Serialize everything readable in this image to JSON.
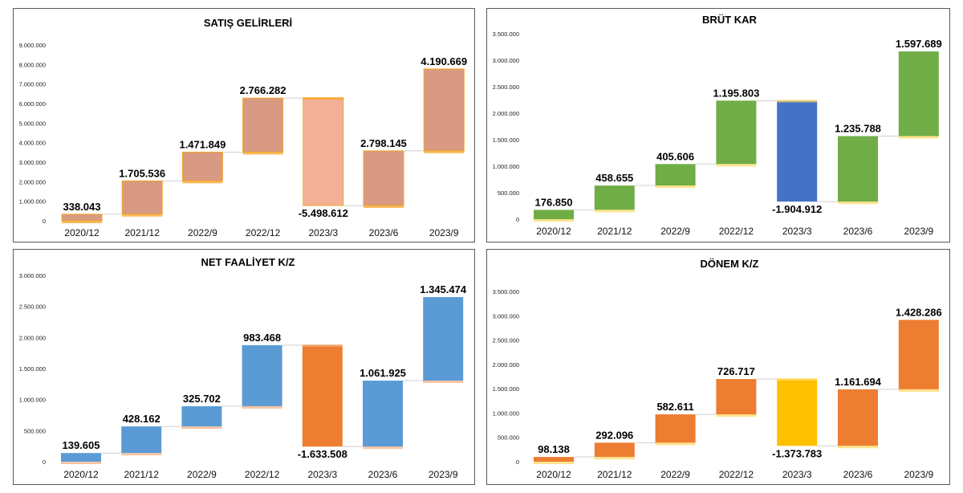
{
  "chart_data": [
    {
      "type": "waterfall",
      "title": "SATIŞ GELİRLERİ",
      "categories": [
        "2020/12",
        "2021/12",
        "2022/9",
        "2022/12",
        "2023/3",
        "2023/6",
        "2023/9"
      ],
      "deltas": [
        338043,
        1705536,
        1471849,
        2766282,
        -5498612,
        2798145,
        4190669
      ],
      "labels": [
        "338.043",
        "1.705.536",
        "1.471.849",
        "2.766.282",
        "-5.498.612",
        "2.798.145",
        "4.190.669"
      ],
      "ylim": [
        0,
        9000000
      ],
      "ytick_labels": [
        "0",
        "1.000.000",
        "2.000.000",
        "3.000.000",
        "4.000.000",
        "5.000.000",
        "6.000.000",
        "7.000.000",
        "8.000.000",
        "9.000.000"
      ],
      "colors": {
        "increase": "#d89a82",
        "decrease": "#f2b196",
        "edge": "#f5a623"
      }
    },
    {
      "type": "waterfall",
      "title": "BRÜT KAR",
      "categories": [
        "2020/12",
        "2021/12",
        "2022/9",
        "2022/12",
        "2023/3",
        "2023/6",
        "2023/9"
      ],
      "deltas": [
        176850,
        458655,
        405606,
        1195803,
        -1904912,
        1235788,
        1597689
      ],
      "labels": [
        "176.850",
        "458.655",
        "405.606",
        "1.195.803",
        "-1.904.912",
        "1.235.788",
        "1.597.689"
      ],
      "ylim": [
        0,
        3500000
      ],
      "ytick_labels": [
        "0",
        "500.000",
        "1.000.000",
        "1.500.000",
        "2.000.000",
        "2.500.000",
        "3.000.000",
        "3.500.000"
      ],
      "colors": {
        "increase": "#70ad47",
        "decrease": "#4472c4",
        "edge": "#ffd966"
      }
    },
    {
      "type": "waterfall",
      "title": "NET FAALİYET K/Z",
      "categories": [
        "2020/12",
        "2021/12",
        "2022/9",
        "2022/12",
        "2023/3",
        "2023/6",
        "2023/9"
      ],
      "deltas": [
        139605,
        428162,
        325702,
        983468,
        -1633508,
        1061925,
        1345474
      ],
      "labels": [
        "139.605",
        "428.162",
        "325.702",
        "983.468",
        "-1.633.508",
        "1.061.925",
        "1.345.474"
      ],
      "ylim": [
        0,
        3000000
      ],
      "ytick_labels": [
        "0",
        "500.000",
        "1.000.000",
        "1.500.000",
        "2.000.000",
        "2.500.000",
        "3.000.000"
      ],
      "colors": {
        "increase": "#5b9bd5",
        "decrease": "#ed7d31",
        "edge": "#f4b183"
      }
    },
    {
      "type": "waterfall",
      "title": "DÖNEM K/Z",
      "categories": [
        "2020/12",
        "2021/12",
        "2022/9",
        "2022/12",
        "2023/3",
        "2023/6",
        "2023/9"
      ],
      "deltas": [
        98138,
        292096,
        582611,
        726717,
        -1373783,
        1161694,
        1428286
      ],
      "labels": [
        "98.138",
        "292.096",
        "582.611",
        "726.717",
        "-1.373.783",
        "1.161.694",
        "1.428.286"
      ],
      "ylim": [
        0,
        3500000
      ],
      "ytick_labels": [
        "0",
        "500.000",
        "1.000.000",
        "1.500.000",
        "2.000.000",
        "2.500.000",
        "3.000.000",
        "3.500.000"
      ],
      "colors": {
        "increase": "#ed7d31",
        "decrease": "#ffc000",
        "edge": "#ffd966"
      }
    }
  ]
}
